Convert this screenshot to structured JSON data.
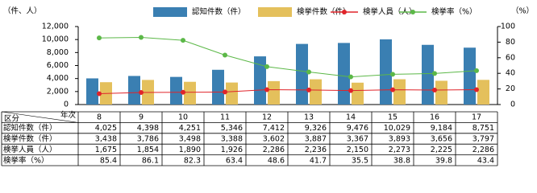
{
  "chart_data": {
    "type": "bar-line",
    "y_label": "（件、人）",
    "y2_label": "（%）",
    "series_label": "区分",
    "x_label": "年次",
    "categories": [
      "8",
      "9",
      "10",
      "11",
      "12",
      "13",
      "14",
      "15",
      "16",
      "17"
    ],
    "series": [
      {
        "name": "認知件数（件）",
        "type": "bar",
        "color": "#3a7fb2",
        "values": [
          4025,
          4398,
          4251,
          5346,
          7412,
          9326,
          9476,
          10029,
          9184,
          8751
        ],
        "value_labels": [
          "4,025",
          "4,398",
          "4,251",
          "5,346",
          "7,412",
          "9,326",
          "9,476",
          "10,029",
          "9,184",
          "8,751"
        ]
      },
      {
        "name": "検挙件数（件）",
        "type": "bar",
        "color": "#e4c05c",
        "values": [
          3438,
          3786,
          3498,
          3388,
          3602,
          3887,
          3367,
          3893,
          3656,
          3797
        ],
        "value_labels": [
          "3,438",
          "3,786",
          "3,498",
          "3,388",
          "3,602",
          "3,887",
          "3,367",
          "3,893",
          "3,656",
          "3,797"
        ]
      },
      {
        "name": "検挙人員（人）",
        "type": "line",
        "color": "#e0242a",
        "values": [
          1675,
          1854,
          1890,
          1926,
          2286,
          2236,
          2150,
          2273,
          2225,
          2286
        ],
        "value_labels": [
          "1,675",
          "1,854",
          "1,890",
          "1,926",
          "2,286",
          "2,236",
          "2,150",
          "2,273",
          "2,225",
          "2,286"
        ]
      },
      {
        "name": "検挙率（%）",
        "type": "line",
        "axis": "y2",
        "color": "#5cb848",
        "values": [
          85.4,
          86.1,
          82.3,
          63.4,
          48.6,
          41.7,
          35.5,
          38.8,
          39.8,
          43.4
        ]
      }
    ],
    "ylim": [
      0,
      12000
    ],
    "yticks": [
      0,
      {
        "value": 2000,
        "label": "2,000"
      },
      {
        "value": 4000,
        "label": "4,000"
      },
      {
        "value": 6000,
        "label": "6,000"
      },
      {
        "value": 8000,
        "label": "8,000"
      },
      {
        "value": 10000,
        "label": "10,000"
      },
      {
        "value": 12000,
        "label": "12,000"
      }
    ],
    "y2lim": [
      0,
      100
    ],
    "y2ticks": [
      0,
      20,
      40,
      60,
      80,
      100
    ]
  }
}
